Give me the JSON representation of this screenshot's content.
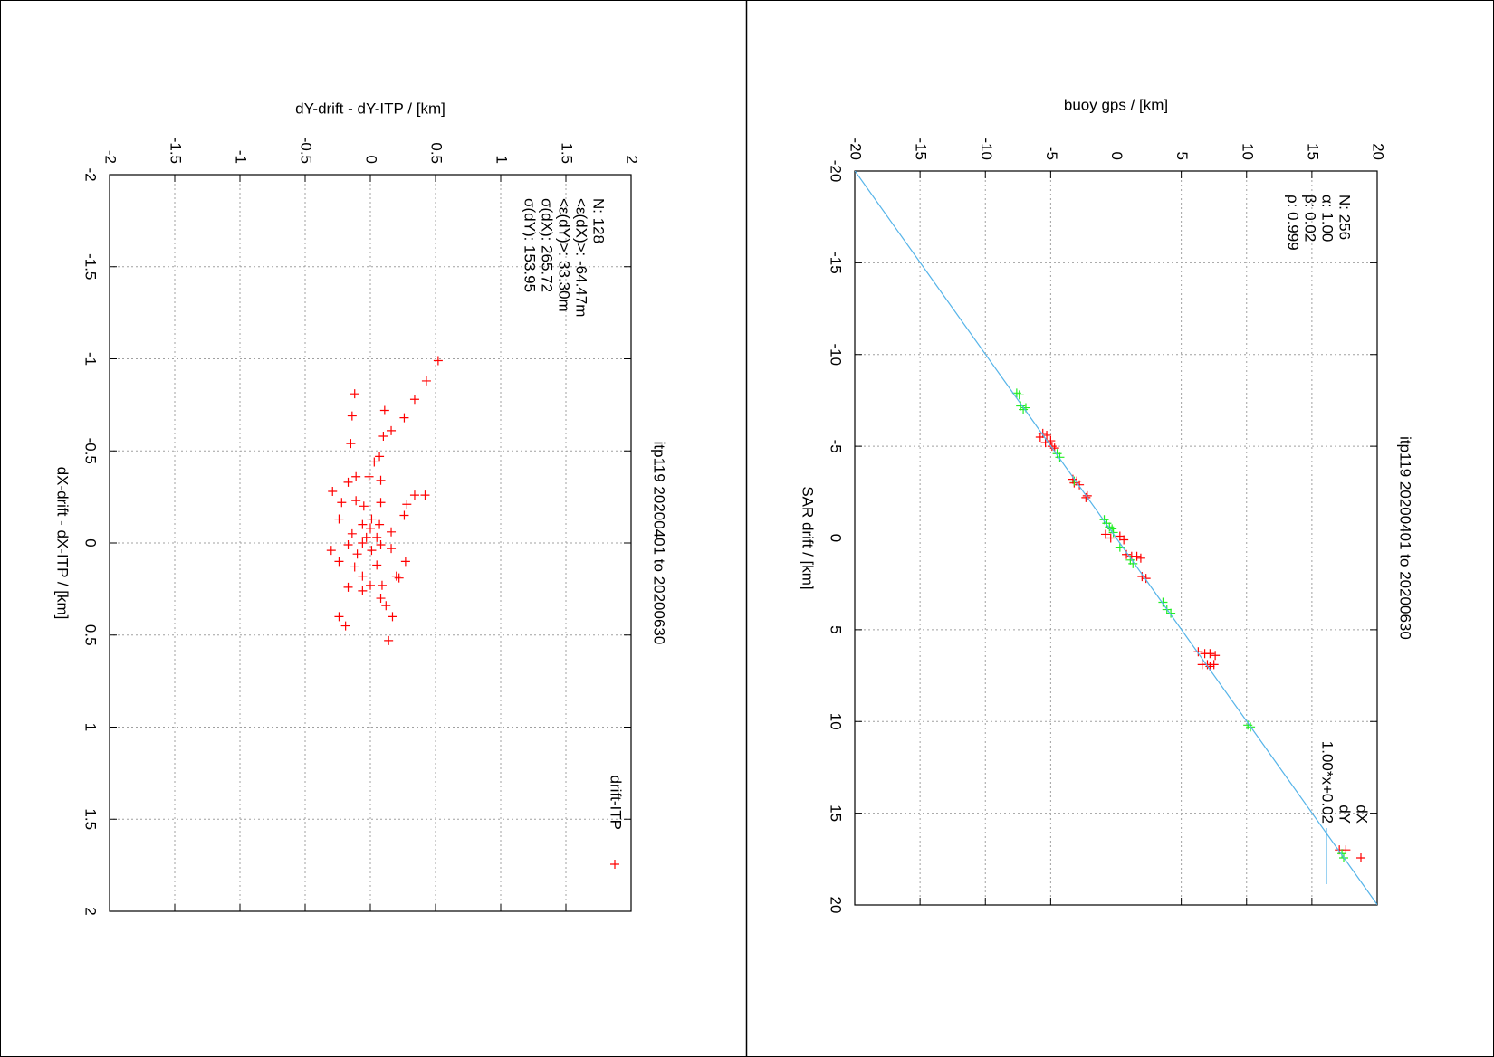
{
  "chart_data": [
    {
      "type": "scatter",
      "title": "itp119 20200401 to 20200630",
      "xlabel": "dX-drift - dX-ITP / [km]",
      "ylabel": "dY-drift - dY-ITP / [km]",
      "xlim": [
        -2,
        2
      ],
      "ylim": [
        -2,
        2
      ],
      "xticks": [
        -2,
        -1.5,
        -1,
        -0.5,
        0,
        0.5,
        1,
        1.5,
        2
      ],
      "yticks": [
        -2,
        -1.5,
        -1,
        -0.5,
        0,
        0.5,
        1,
        1.5,
        2
      ],
      "grid": true,
      "legend": "top right",
      "annotations": [
        "N: 128",
        "<ε(dX)>: -64.47m",
        "<ε(dY)>: 33.30m",
        "σ(dX): 265.72",
        "σ(dY): 153.95"
      ],
      "series": [
        {
          "name": "drift-ITP",
          "color": "#ff0000",
          "marker": "+",
          "x": [
            -0.99,
            -0.88,
            -0.81,
            -0.78,
            -0.69,
            -0.72,
            -0.68,
            -0.61,
            -0.54,
            -0.58,
            -0.47,
            -0.44,
            -0.36,
            -0.33,
            -0.34,
            -0.36,
            -0.28,
            -0.26,
            -0.26,
            -0.23,
            -0.22,
            -0.2,
            -0.22,
            -0.21,
            -0.15,
            -0.13,
            -0.13,
            -0.1,
            -0.1,
            -0.08,
            -0.06,
            -0.05,
            -0.03,
            -0.03,
            0,
            0.01,
            0.01,
            0.04,
            0.04,
            0.03,
            0.06,
            0.1,
            0.1,
            0.12,
            0.18,
            0.18,
            0.23,
            0.19,
            0.24,
            0.3,
            0.26,
            0.34,
            0.4,
            0.4,
            0.45,
            0.53,
            0.23,
            0.13
          ],
          "values": [
            0.52,
            0.43,
            -0.12,
            0.34,
            -0.14,
            0.11,
            0.26,
            0.16,
            -0.15,
            0.1,
            0.07,
            0.03,
            -0.11,
            -0.17,
            0.08,
            -0.01,
            -0.29,
            0.34,
            0.42,
            -0.11,
            -0.22,
            -0.05,
            0.08,
            0.28,
            0.26,
            0.01,
            -0.24,
            -0.06,
            0.07,
            0,
            0.16,
            -0.14,
            -0.03,
            0.05,
            -0.06,
            0.08,
            -0.17,
            -0.3,
            0.01,
            0.16,
            -0.1,
            0.27,
            -0.24,
            0.05,
            0.2,
            -0.06,
            0.09,
            0.22,
            -0.17,
            0.08,
            -0.06,
            0.12,
            0.17,
            -0.24,
            -0.19,
            0.14,
            0,
            -0.12
          ]
        }
      ]
    },
    {
      "type": "scatter",
      "title": "itp119 20200401 to 20200630",
      "xlabel": "SAR drift / [km]",
      "ylabel": "buoy gps / [km]",
      "xlim": [
        -20,
        20
      ],
      "ylim": [
        -20,
        20
      ],
      "xticks": [
        -20,
        -15,
        -10,
        -5,
        0,
        5,
        10,
        15,
        20
      ],
      "yticks": [
        -20,
        -15,
        -10,
        -5,
        0,
        5,
        10,
        15,
        20
      ],
      "grid": true,
      "legend": "top right",
      "annotations": [
        "N: 256",
        "α: 1.00",
        "β: 0.02",
        "ρ: 0.999"
      ],
      "series": [
        {
          "name": "dX",
          "color": "#ff0000",
          "marker": "+",
          "x": [
            -5.7,
            -5.6,
            -5.5,
            -5.3,
            -5.2,
            -5.0,
            -4.9,
            -3.2,
            -3.1,
            -3.0,
            -2.9,
            -2.3,
            -2.2,
            -0.2,
            -0.1,
            0,
            0.1,
            0.9,
            1.0,
            1.0,
            1.1,
            2.1,
            2.2,
            6.2,
            6.3,
            6.3,
            6.4,
            6.9,
            6.9,
            6.9,
            7.0,
            17.0,
            17.0
          ],
          "values": [
            -5.6,
            -5.3,
            -5.8,
            -5.0,
            -5.4,
            -4.9,
            -4.7,
            -3.3,
            -3.0,
            -3.2,
            -2.8,
            -2.2,
            -2.3,
            -0.8,
            0.3,
            -0.4,
            0.6,
            0.8,
            1.2,
            1.6,
            1.9,
            2.0,
            2.3,
            6.3,
            6.8,
            7.2,
            7.6,
            6.6,
            7.0,
            7.5,
            7.2,
            17.1,
            17.6
          ]
        },
        {
          "name": "dY",
          "color": "#22ee22",
          "marker": "+",
          "x": [
            -7.9,
            -7.8,
            -7.2,
            -7.1,
            -7.0,
            -4.6,
            -4.4,
            -3.1,
            -1.0,
            -0.8,
            -0.6,
            -0.5,
            -0.3,
            0.5,
            1.2,
            1.4,
            3.5,
            3.9,
            4.1,
            10.2,
            10.3,
            17.2
          ],
          "values": [
            -7.6,
            -7.4,
            -7.3,
            -6.9,
            -7.1,
            -4.5,
            -4.3,
            -3.2,
            -0.9,
            -0.7,
            -0.5,
            -0.3,
            -0.2,
            0.3,
            1.1,
            1.3,
            3.6,
            3.9,
            4.2,
            10.1,
            10.3,
            17.3
          ]
        },
        {
          "name": "1.00*x+0.02",
          "color": "#56b4e9",
          "style": "line",
          "x": [
            -20,
            20
          ],
          "values": [
            -19.98,
            20.02
          ]
        }
      ]
    }
  ]
}
